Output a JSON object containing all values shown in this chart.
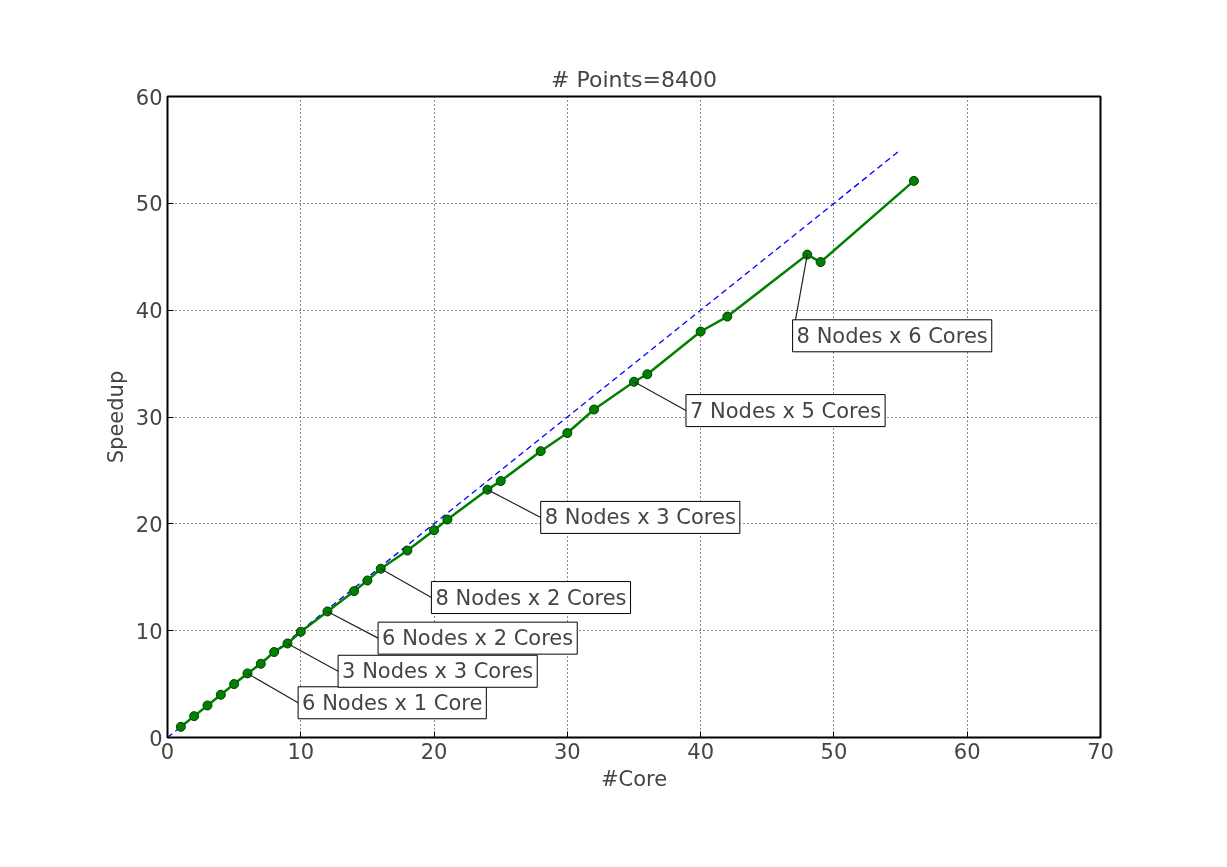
{
  "chart_data": {
    "type": "line",
    "title": "# Points=8400",
    "xlabel": "#Core",
    "ylabel": "Speedup",
    "xlim": [
      0,
      70
    ],
    "ylim": [
      0,
      60
    ],
    "xticks": [
      0,
      10,
      20,
      30,
      40,
      50,
      60,
      70
    ],
    "yticks": [
      0,
      10,
      20,
      30,
      40,
      50,
      60
    ],
    "grid": true,
    "series": [
      {
        "color": "#0000ff",
        "line_style": "dashed",
        "marker": "none",
        "x": [
          0,
          55
        ],
        "values": [
          0,
          55
        ]
      },
      {
        "color": "#008000",
        "line_style": "solid",
        "marker": "circle",
        "x": [
          1,
          2,
          3,
          4,
          5,
          6,
          7,
          8,
          9,
          10,
          12,
          14,
          15,
          16,
          18,
          20,
          21,
          24,
          25,
          28,
          30,
          32,
          35,
          36,
          40,
          42,
          48,
          49,
          56
        ],
        "values": [
          1.0,
          2.0,
          3.0,
          4.0,
          5.0,
          6.0,
          6.9,
          8.0,
          8.8,
          9.9,
          11.8,
          13.7,
          14.7,
          15.8,
          17.5,
          19.4,
          20.4,
          23.2,
          24.0,
          26.8,
          28.5,
          30.7,
          33.3,
          34.0,
          38.0,
          39.4,
          45.2,
          44.5,
          52.1
        ]
      }
    ],
    "annotations": [
      {
        "text": "6 Nodes x 1 Core",
        "x": 6,
        "y": 6.0
      },
      {
        "text": "3 Nodes x 3 Cores",
        "x": 9,
        "y": 8.8
      },
      {
        "text": "6 Nodes x 2 Cores",
        "x": 12,
        "y": 11.8
      },
      {
        "text": "8 Nodes x 2 Cores",
        "x": 16,
        "y": 15.8
      },
      {
        "text": "8 Nodes x 3 Cores",
        "x": 24,
        "y": 23.2
      },
      {
        "text": "7 Nodes x 5 Cores",
        "x": 35,
        "y": 33.3
      },
      {
        "text": "8 Nodes x 6 Cores",
        "x": 48,
        "y": 45.2
      }
    ]
  }
}
